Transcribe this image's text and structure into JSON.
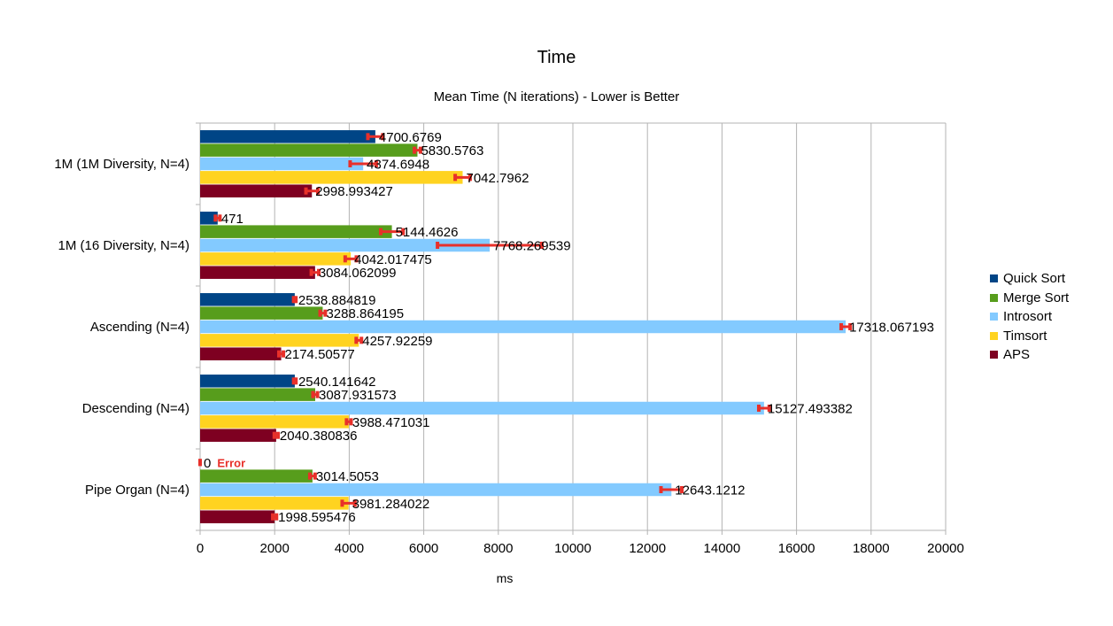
{
  "chart_data": {
    "type": "bar",
    "orientation": "horizontal",
    "title": "Time",
    "subtitle": "Mean Time (N iterations) - Lower is Better",
    "xlabel": "ms",
    "ylabel": "",
    "xlim": [
      0,
      20000
    ],
    "x_ticks": [
      "0",
      "2000",
      "4000",
      "6000",
      "8000",
      "10000",
      "12000",
      "14000",
      "16000",
      "18000",
      "20000"
    ],
    "grid": "vertical",
    "legend_position": "right",
    "categories": [
      "1M (1M Diversity, N=4)",
      "1M (16 Diversity, N=4)",
      "Ascending (N=4)",
      "Descending (N=4)",
      "Pipe Organ (N=4)"
    ],
    "series": [
      {
        "name": "Quick Sort",
        "color": "#004586",
        "values": [
          4700.6769,
          471,
          2538.884819,
          2540.141642,
          0
        ],
        "labels": [
          "4700.6769",
          "471",
          "2538.884819",
          "2540.141642",
          "0"
        ],
        "error": [
          200,
          60,
          30,
          30,
          0
        ]
      },
      {
        "name": "Merge Sort",
        "color": "#579d1c",
        "values": [
          5830.5763,
          5144.4626,
          3288.864195,
          3087.931573,
          3014.5053
        ],
        "labels": [
          "5830.5763",
          "5144.4626",
          "3288.864195",
          "3087.931573",
          "3014.5053"
        ],
        "error": [
          80,
          300,
          70,
          60,
          70
        ]
      },
      {
        "name": "Introsort",
        "color": "#83caff",
        "values": [
          4374.6948,
          7768.269539,
          17318.067193,
          15127.493382,
          12643.1212
        ],
        "labels": [
          "4374.6948",
          "7768.269539",
          "17318.067193",
          "15127.493382",
          "12643.1212"
        ],
        "error": [
          350,
          1400,
          120,
          140,
          280
        ]
      },
      {
        "name": "Timsort",
        "color": "#ffd320",
        "values": [
          7042.7962,
          4042.017475,
          4257.92259,
          3988.471031,
          3981.284022
        ],
        "labels": [
          "7042.7962",
          "4042.017475",
          "4257.92259",
          "3988.471031",
          "3981.284022"
        ],
        "error": [
          200,
          150,
          70,
          60,
          170
        ]
      },
      {
        "name": "APS",
        "color": "#7e0021",
        "values": [
          2998.993427,
          3084.062099,
          2174.50577,
          2040.380836,
          1998.595476
        ],
        "labels": [
          "2998.993427",
          "3084.062099",
          "2174.50577",
          "2040.380836",
          "1998.595476"
        ],
        "error": [
          160,
          100,
          60,
          50,
          50
        ]
      }
    ],
    "annotations": [
      {
        "category": "Pipe Organ (N=4)",
        "series": "Quick Sort",
        "text": "Error",
        "color": "#e8302a"
      }
    ],
    "error_bar_color": "#e8302a"
  }
}
